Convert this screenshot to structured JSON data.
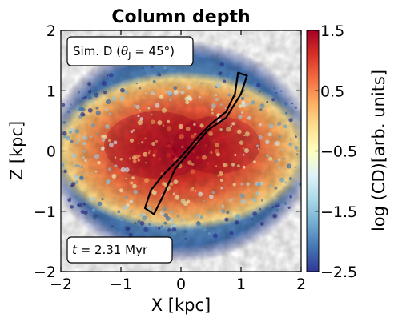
{
  "chart_data": {
    "type": "heatmap",
    "title": "Column depth",
    "xlabel": "X [kpc]",
    "ylabel": "Z [kpc]",
    "xlim": [
      -2,
      2
    ],
    "ylim": [
      -2,
      2
    ],
    "x_ticks": [
      "−2",
      "−1",
      "0",
      "1",
      "2"
    ],
    "y_ticks": [
      "−2",
      "−1",
      "0",
      "1",
      "2"
    ],
    "colorbar": {
      "label": "log (CD)[arb. units]",
      "range": [
        -2.5,
        1.5
      ],
      "ticks": [
        "1.5",
        "0.5",
        "−0.5",
        "−1.5",
        "−2.5"
      ],
      "colormap": "RdYlBu_r",
      "colors": [
        "#313695",
        "#4575b4",
        "#74add1",
        "#abd9e9",
        "#e0f3f8",
        "#ffffbf",
        "#fee090",
        "#fdae61",
        "#f46d43",
        "#d73027",
        "#a50026"
      ]
    },
    "annotations": {
      "sim_prefix": "Sim.  D (",
      "sim_theta": "θ",
      "sim_sub": "J",
      "sim_suffix": " = 45°)",
      "time_prefix": "t",
      "time_value": " = 2.31 Myr"
    },
    "jet_contour": {
      "color": "#000000",
      "upper_tip": [
        1.05,
        1.3
      ],
      "lower_tip": [
        -0.55,
        -1.0
      ]
    }
  }
}
